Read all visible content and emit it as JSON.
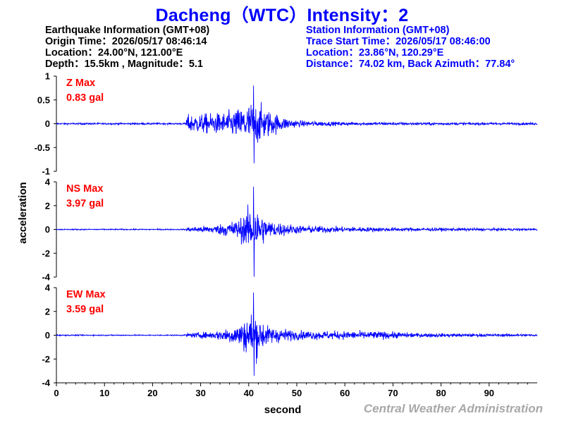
{
  "title": "Dacheng（WTC）Intensity：2",
  "earthquake_info": {
    "header": "Earthquake Information  (GMT+08)",
    "origin_time": "Origin Time：2026/05/17 08:46:14",
    "location": "Location：24.00°N, 121.00°E",
    "depth_magnitude": "Depth：15.5km , Magnitude：5.1"
  },
  "station_info": {
    "header": "Station Information  (GMT+08)",
    "trace_start": "Trace Start Time：2026/05/17 08:46:00",
    "location": "Location：23.86°N, 120.29°E",
    "distance": "Distance：74.02 km, Back Azimuth：77.84°"
  },
  "footer": "Central Weather Administration",
  "colors": {
    "title": "#0000ff",
    "trace": "#0000ff",
    "max_label": "#ff0000",
    "station_text": "#0000ff",
    "footer": "#a8a8a8"
  },
  "chart_data": {
    "type": "line",
    "xlabel": "second",
    "ylabel": "acceleration",
    "xlim": [
      0,
      100
    ],
    "xticks": [
      "0",
      "10",
      "20",
      "30",
      "40",
      "50",
      "60",
      "70",
      "80",
      "90"
    ],
    "x_tick_values": [
      0,
      10,
      20,
      30,
      40,
      50,
      60,
      70,
      80,
      90
    ],
    "panels": [
      {
        "name": "Z",
        "max_label": "Z Max",
        "max_value": "0.83 gal",
        "ylim": [
          -1,
          1
        ],
        "yticks": [
          1,
          0.5,
          0,
          -0.5,
          -1
        ],
        "ytick_labels": [
          "1",
          "0.5",
          "0",
          "-0.5",
          "-1"
        ],
        "envelope": [
          [
            0,
            0.03
          ],
          [
            26.8,
            0.03
          ],
          [
            27.2,
            0.32
          ],
          [
            35,
            0.4
          ],
          [
            38,
            0.55
          ],
          [
            41,
            0.83
          ],
          [
            44,
            0.5
          ],
          [
            47,
            0.25
          ],
          [
            50,
            0.12
          ],
          [
            60,
            0.06
          ],
          [
            75,
            0.05
          ],
          [
            100,
            0.04
          ]
        ],
        "peak_pos": 0.8,
        "peak_neg": -0.83
      },
      {
        "name": "NS",
        "max_label": "NS Max",
        "max_value": "3.97 gal",
        "ylim": [
          -4,
          4
        ],
        "yticks": [
          4,
          2,
          0,
          -2,
          -4
        ],
        "ytick_labels": [
          "4",
          "2",
          "0",
          "-2",
          "-4"
        ],
        "envelope": [
          [
            0,
            0.08
          ],
          [
            26.8,
            0.08
          ],
          [
            27.2,
            0.35
          ],
          [
            33,
            0.6
          ],
          [
            38,
            1.5
          ],
          [
            41,
            3.6
          ],
          [
            44,
            1.3
          ],
          [
            50,
            0.6
          ],
          [
            60,
            0.4
          ],
          [
            70,
            0.28
          ],
          [
            100,
            0.15
          ]
        ],
        "peak_pos": 3.6,
        "peak_neg": -3.97
      },
      {
        "name": "EW",
        "max_label": "EW Max",
        "max_value": "3.59 gal",
        "ylim": [
          -4,
          4
        ],
        "yticks": [
          4,
          2,
          0,
          -2,
          -4
        ],
        "ytick_labels": [
          "4",
          "2",
          "0",
          "-2",
          "-4"
        ],
        "envelope": [
          [
            0,
            0.08
          ],
          [
            26.8,
            0.08
          ],
          [
            27.2,
            0.3
          ],
          [
            33,
            0.55
          ],
          [
            38,
            1.6
          ],
          [
            41,
            3.59
          ],
          [
            44,
            1.3
          ],
          [
            50,
            0.65
          ],
          [
            68,
            0.55
          ],
          [
            75,
            0.3
          ],
          [
            100,
            0.15
          ]
        ],
        "peak_pos": 3.59,
        "peak_neg": -3.4
      }
    ]
  }
}
